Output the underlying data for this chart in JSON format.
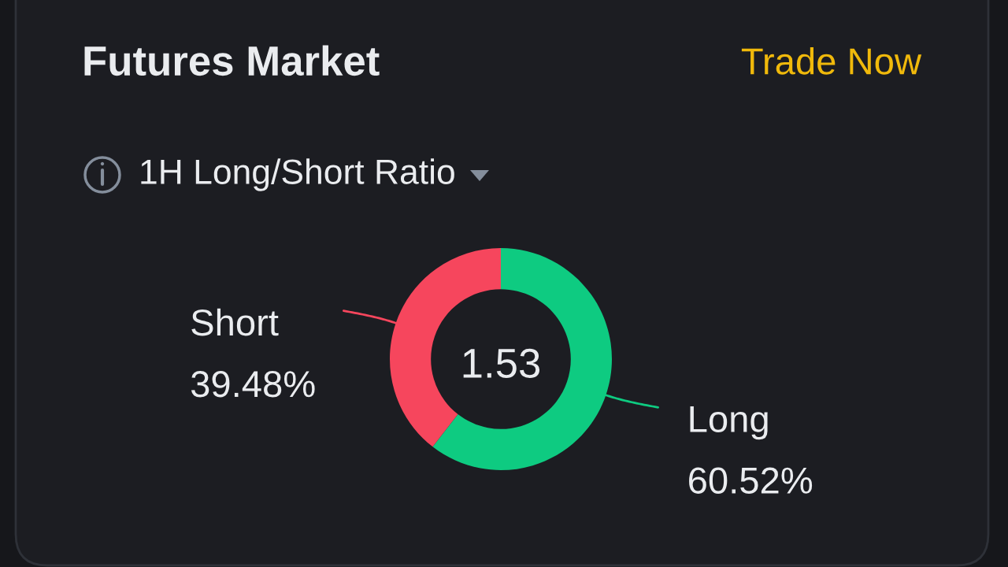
{
  "chart_data": {
    "type": "donut",
    "title": "Futures Market",
    "subtitle": "1H Long/Short Ratio",
    "categories": [
      "Long",
      "Short"
    ],
    "values": [
      60.52,
      39.48
    ],
    "colors": [
      "#0ecb81",
      "#f6465d"
    ],
    "value_labels": [
      "60.52%",
      "39.48%"
    ],
    "annotations": [
      "Trade Now",
      "1.53"
    ]
  }
}
